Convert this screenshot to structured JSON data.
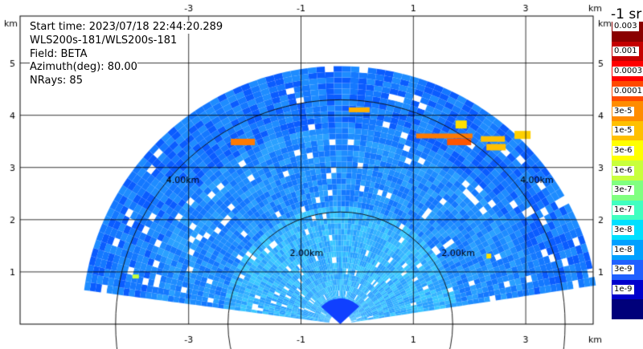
{
  "header": {
    "start_time": "Start time: 2023/07/18 22:44:20.289",
    "instrument": "WLS200s-181/WLS200s-181",
    "field": "Field: BETA",
    "azimuth": "Azimuth(deg): 80.00",
    "nrays": "NRays: 85"
  },
  "axes": {
    "unit": "km",
    "x_ticks": [
      "-3",
      "-1",
      "1",
      "3"
    ],
    "x_tick_values": [
      -3,
      -1,
      1,
      3
    ],
    "y_ticks": [
      "1",
      "2",
      "3",
      "4",
      "5"
    ],
    "y_tick_values": [
      1,
      2,
      3,
      4,
      5
    ],
    "xlim": [
      -6.0,
      4.2
    ],
    "ylim": [
      0,
      5.9
    ]
  },
  "range_rings": [
    {
      "label": "2.00km",
      "radius_km": 2.0
    },
    {
      "label": "4.00km",
      "radius_km": 4.0
    }
  ],
  "colorbar": {
    "unit_label": "-1 sr",
    "labels": [
      "0.003",
      "0.001",
      "0.0003",
      "0.0001",
      "3e-5",
      "1e-5",
      "3e-6",
      "1e-6",
      "3e-7",
      "1e-7",
      "3e-8",
      "1e-8",
      "3e-9",
      "1e-9"
    ],
    "colors": [
      "#8a0000",
      "#c40000",
      "#ff0000",
      "#ff4a00",
      "#ff8c00",
      "#ffc000",
      "#ffff00",
      "#c8ff3c",
      "#80ff80",
      "#40ffc0",
      "#00e0ff",
      "#00a0ff",
      "#2060ff",
      "#0000cc",
      "#00007a"
    ]
  },
  "sector": {
    "apex_km": [
      -0.3,
      0
    ],
    "max_range_km": 4.6,
    "color_range_blue": "#1c8cff",
    "color_range_cyan": "#3cc8ff"
  }
}
